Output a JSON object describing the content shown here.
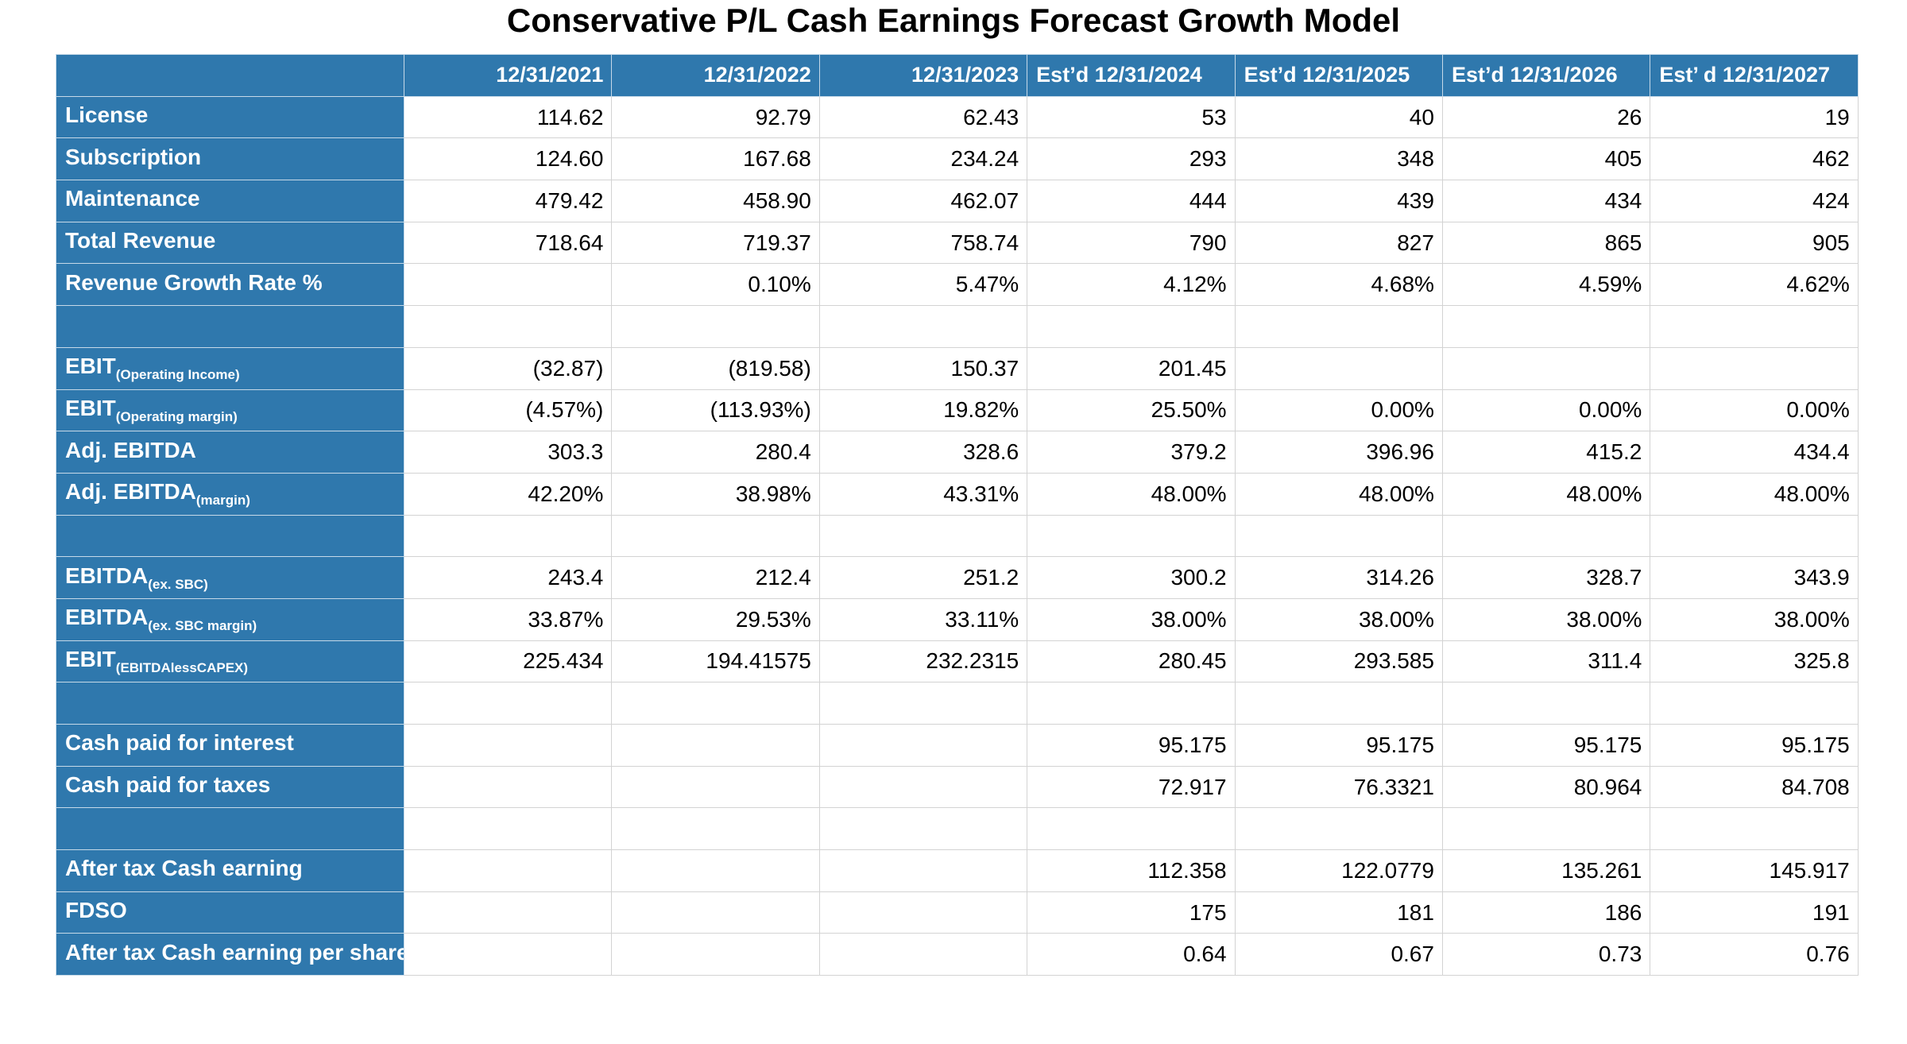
{
  "title": "Conservative P/L Cash Earnings Forecast Growth Model",
  "header": [
    "12/31/2021",
    "12/31/2022",
    "12/31/2023",
    "Est’d 12/31/2024",
    "Est’d 12/31/2025",
    "Est’d 12/31/2026",
    "Est’ d 12/31/2027"
  ],
  "rows": [
    {
      "label": "License",
      "sub": "",
      "values": [
        "114.62",
        "92.79",
        "62.43",
        "53",
        "40",
        "26",
        "19"
      ]
    },
    {
      "label": "Subscription",
      "sub": "",
      "values": [
        "124.60",
        "167.68",
        "234.24",
        "293",
        "348",
        "405",
        "462"
      ]
    },
    {
      "label": "Maintenance",
      "sub": "",
      "values": [
        "479.42",
        "458.90",
        "462.07",
        "444",
        "439",
        "434",
        "424"
      ]
    },
    {
      "label": "Total Revenue",
      "sub": "",
      "values": [
        "718.64",
        "719.37",
        "758.74",
        "790",
        "827",
        "865",
        "905"
      ]
    },
    {
      "label": "Revenue Growth Rate %",
      "sub": "",
      "values": [
        "",
        "0.10%",
        "5.47%",
        "4.12%",
        "4.68%",
        "4.59%",
        "4.62%"
      ]
    },
    {
      "label": "",
      "sub": "",
      "values": [
        "",
        "",
        "",
        "",
        "",
        "",
        ""
      ]
    },
    {
      "label": "EBIT",
      "sub": "(Operating Income)",
      "values": [
        "(32.87)",
        "(819.58)",
        "150.37",
        "201.45",
        "",
        "",
        ""
      ]
    },
    {
      "label": "EBIT",
      "sub": "(Operating margin)",
      "values": [
        "(4.57%)",
        "(113.93%)",
        "19.82%",
        "25.50%",
        "0.00%",
        "0.00%",
        "0.00%"
      ]
    },
    {
      "label": "Adj. EBITDA",
      "sub": "",
      "values": [
        "303.3",
        "280.4",
        "328.6",
        "379.2",
        "396.96",
        "415.2",
        "434.4"
      ]
    },
    {
      "label": "Adj. EBITDA",
      "sub": "(margin)",
      "values": [
        "42.20%",
        "38.98%",
        "43.31%",
        "48.00%",
        "48.00%",
        "48.00%",
        "48.00%"
      ]
    },
    {
      "label": "",
      "sub": "",
      "values": [
        "",
        "",
        "",
        "",
        "",
        "",
        ""
      ]
    },
    {
      "label": "EBITDA",
      "sub": "(ex. SBC)",
      "values": [
        "243.4",
        "212.4",
        "251.2",
        "300.2",
        "314.26",
        "328.7",
        "343.9"
      ]
    },
    {
      "label": "EBITDA",
      "sub": "(ex. SBC margin)",
      "values": [
        "33.87%",
        "29.53%",
        "33.11%",
        "38.00%",
        "38.00%",
        "38.00%",
        "38.00%"
      ]
    },
    {
      "label": "EBIT",
      "sub": "(EBITDAlessCAPEX)",
      "values": [
        "225.434",
        "194.41575",
        "232.2315",
        "280.45",
        "293.585",
        "311.4",
        "325.8"
      ]
    },
    {
      "label": "",
      "sub": "",
      "values": [
        "",
        "",
        "",
        "",
        "",
        "",
        ""
      ]
    },
    {
      "label": "Cash paid for interest",
      "sub": "",
      "values": [
        "",
        "",
        "",
        "95.175",
        "95.175",
        "95.175",
        "95.175"
      ]
    },
    {
      "label": "Cash paid for taxes",
      "sub": "",
      "values": [
        "",
        "",
        "",
        "72.917",
        "76.3321",
        "80.964",
        "84.708"
      ]
    },
    {
      "label": "",
      "sub": "",
      "values": [
        "",
        "",
        "",
        "",
        "",
        "",
        ""
      ]
    },
    {
      "label": "After tax Cash earning",
      "sub": "",
      "values": [
        "",
        "",
        "",
        "112.358",
        "122.0779",
        "135.261",
        "145.917"
      ]
    },
    {
      "label": "FDSO",
      "sub": "",
      "values": [
        "",
        "",
        "",
        "175",
        "181",
        "186",
        "191"
      ]
    },
    {
      "label": "After tax Cash earning per share",
      "sub": "",
      "values": [
        "",
        "",
        "",
        "0.64",
        "0.67",
        "0.73",
        "0.76"
      ]
    }
  ]
}
